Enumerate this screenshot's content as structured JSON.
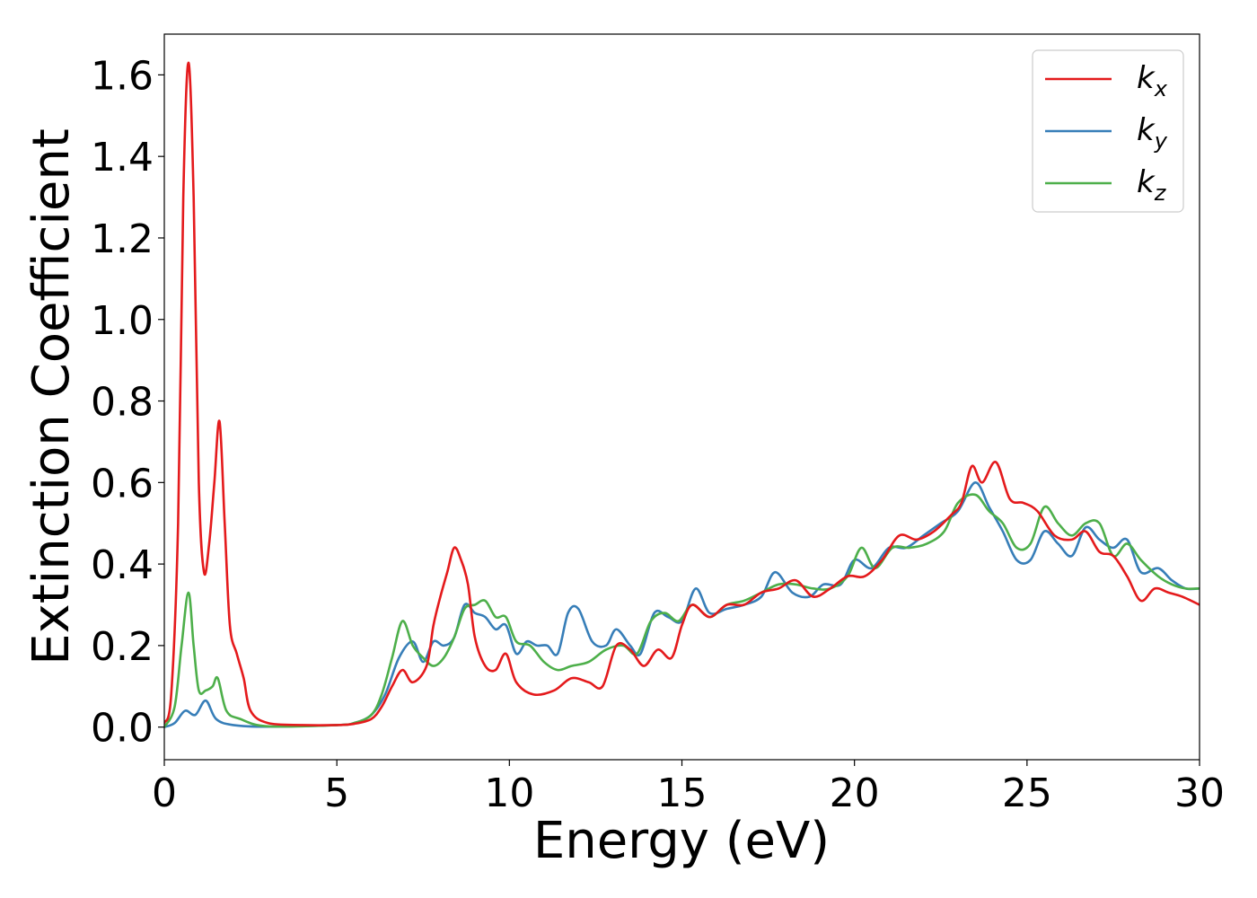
{
  "chart_data": {
    "type": "line",
    "xlabel": "Energy (eV)",
    "ylabel": "Extinction Coefficient",
    "xlim": [
      0,
      30
    ],
    "ylim": [
      -0.08,
      1.7
    ],
    "xticks": [
      0,
      5,
      10,
      15,
      20,
      25,
      30
    ],
    "xtick_labels": [
      "0",
      "5",
      "10",
      "15",
      "20",
      "25",
      "30"
    ],
    "yticks": [
      0.0,
      0.2,
      0.4,
      0.6,
      0.8,
      1.0,
      1.2,
      1.4,
      1.6
    ],
    "ytick_labels": [
      "0.0",
      "0.2",
      "0.4",
      "0.6",
      "0.8",
      "1.0",
      "1.2",
      "1.4",
      "1.6"
    ],
    "grid": false,
    "legend_position": "top-right",
    "series": [
      {
        "name": "k",
        "subscript": "x",
        "color": "#e41a1c",
        "points": [
          [
            0,
            0.01
          ],
          [
            0.2,
            0.08
          ],
          [
            0.4,
            0.5
          ],
          [
            0.55,
            1.3
          ],
          [
            0.7,
            1.63
          ],
          [
            0.85,
            1.3
          ],
          [
            1.0,
            0.6
          ],
          [
            1.15,
            0.38
          ],
          [
            1.3,
            0.45
          ],
          [
            1.45,
            0.6
          ],
          [
            1.6,
            0.75
          ],
          [
            1.75,
            0.5
          ],
          [
            1.9,
            0.25
          ],
          [
            2.1,
            0.18
          ],
          [
            2.3,
            0.12
          ],
          [
            2.5,
            0.04
          ],
          [
            3.0,
            0.01
          ],
          [
            4.0,
            0.005
          ],
          [
            5.0,
            0.005
          ],
          [
            5.5,
            0.008
          ],
          [
            6.0,
            0.02
          ],
          [
            6.3,
            0.05
          ],
          [
            6.6,
            0.1
          ],
          [
            6.9,
            0.14
          ],
          [
            7.2,
            0.11
          ],
          [
            7.6,
            0.15
          ],
          [
            7.8,
            0.25
          ],
          [
            8.0,
            0.32
          ],
          [
            8.2,
            0.38
          ],
          [
            8.4,
            0.44
          ],
          [
            8.6,
            0.41
          ],
          [
            8.8,
            0.35
          ],
          [
            9.0,
            0.22
          ],
          [
            9.3,
            0.15
          ],
          [
            9.6,
            0.14
          ],
          [
            9.9,
            0.18
          ],
          [
            10.2,
            0.11
          ],
          [
            10.7,
            0.08
          ],
          [
            11.3,
            0.09
          ],
          [
            11.8,
            0.12
          ],
          [
            12.3,
            0.11
          ],
          [
            12.7,
            0.1
          ],
          [
            13.1,
            0.2
          ],
          [
            13.5,
            0.19
          ],
          [
            13.9,
            0.15
          ],
          [
            14.3,
            0.19
          ],
          [
            14.7,
            0.17
          ],
          [
            15.0,
            0.25
          ],
          [
            15.3,
            0.3
          ],
          [
            15.8,
            0.27
          ],
          [
            16.3,
            0.3
          ],
          [
            16.8,
            0.3
          ],
          [
            17.3,
            0.33
          ],
          [
            17.8,
            0.34
          ],
          [
            18.3,
            0.36
          ],
          [
            18.8,
            0.32
          ],
          [
            19.3,
            0.34
          ],
          [
            19.8,
            0.37
          ],
          [
            20.3,
            0.37
          ],
          [
            20.8,
            0.41
          ],
          [
            21.3,
            0.47
          ],
          [
            21.8,
            0.46
          ],
          [
            22.3,
            0.48
          ],
          [
            22.8,
            0.52
          ],
          [
            23.1,
            0.55
          ],
          [
            23.4,
            0.64
          ],
          [
            23.7,
            0.6
          ],
          [
            24.1,
            0.65
          ],
          [
            24.5,
            0.56
          ],
          [
            24.9,
            0.55
          ],
          [
            25.3,
            0.53
          ],
          [
            25.8,
            0.47
          ],
          [
            26.3,
            0.46
          ],
          [
            26.7,
            0.48
          ],
          [
            27.1,
            0.43
          ],
          [
            27.5,
            0.42
          ],
          [
            27.9,
            0.37
          ],
          [
            28.3,
            0.31
          ],
          [
            28.7,
            0.34
          ],
          [
            29.1,
            0.33
          ],
          [
            29.5,
            0.32
          ],
          [
            30.0,
            0.3
          ]
        ]
      },
      {
        "name": "k",
        "subscript": "y",
        "color": "#377eb8",
        "points": [
          [
            0,
            0.0
          ],
          [
            0.3,
            0.01
          ],
          [
            0.6,
            0.04
          ],
          [
            0.9,
            0.03
          ],
          [
            1.2,
            0.065
          ],
          [
            1.5,
            0.02
          ],
          [
            2.0,
            0.005
          ],
          [
            3.0,
            0.001
          ],
          [
            5.0,
            0.005
          ],
          [
            5.5,
            0.01
          ],
          [
            6.0,
            0.03
          ],
          [
            6.4,
            0.08
          ],
          [
            6.8,
            0.17
          ],
          [
            7.2,
            0.21
          ],
          [
            7.5,
            0.16
          ],
          [
            7.8,
            0.21
          ],
          [
            8.1,
            0.2
          ],
          [
            8.4,
            0.22
          ],
          [
            8.7,
            0.3
          ],
          [
            9.0,
            0.28
          ],
          [
            9.3,
            0.27
          ],
          [
            9.6,
            0.24
          ],
          [
            9.9,
            0.25
          ],
          [
            10.2,
            0.18
          ],
          [
            10.5,
            0.21
          ],
          [
            10.8,
            0.2
          ],
          [
            11.1,
            0.2
          ],
          [
            11.4,
            0.18
          ],
          [
            11.7,
            0.28
          ],
          [
            12.0,
            0.29
          ],
          [
            12.4,
            0.21
          ],
          [
            12.8,
            0.2
          ],
          [
            13.1,
            0.24
          ],
          [
            13.5,
            0.2
          ],
          [
            13.8,
            0.18
          ],
          [
            14.2,
            0.28
          ],
          [
            14.6,
            0.27
          ],
          [
            15.0,
            0.26
          ],
          [
            15.4,
            0.34
          ],
          [
            15.8,
            0.28
          ],
          [
            16.3,
            0.29
          ],
          [
            16.8,
            0.3
          ],
          [
            17.3,
            0.32
          ],
          [
            17.7,
            0.38
          ],
          [
            18.2,
            0.33
          ],
          [
            18.7,
            0.32
          ],
          [
            19.1,
            0.35
          ],
          [
            19.6,
            0.35
          ],
          [
            20.0,
            0.41
          ],
          [
            20.5,
            0.39
          ],
          [
            21.0,
            0.44
          ],
          [
            21.5,
            0.44
          ],
          [
            22.0,
            0.47
          ],
          [
            22.5,
            0.5
          ],
          [
            23.0,
            0.53
          ],
          [
            23.5,
            0.6
          ],
          [
            23.9,
            0.54
          ],
          [
            24.3,
            0.48
          ],
          [
            24.7,
            0.41
          ],
          [
            25.1,
            0.41
          ],
          [
            25.5,
            0.48
          ],
          [
            25.9,
            0.45
          ],
          [
            26.3,
            0.42
          ],
          [
            26.7,
            0.49
          ],
          [
            27.1,
            0.46
          ],
          [
            27.5,
            0.44
          ],
          [
            27.9,
            0.46
          ],
          [
            28.3,
            0.38
          ],
          [
            28.8,
            0.39
          ],
          [
            29.2,
            0.36
          ],
          [
            29.6,
            0.34
          ],
          [
            30.0,
            0.34
          ]
        ]
      },
      {
        "name": "k",
        "subscript": "z",
        "color": "#4daf4a",
        "points": [
          [
            0,
            0.0
          ],
          [
            0.3,
            0.05
          ],
          [
            0.5,
            0.2
          ],
          [
            0.7,
            0.33
          ],
          [
            0.85,
            0.2
          ],
          [
            1.0,
            0.09
          ],
          [
            1.2,
            0.09
          ],
          [
            1.4,
            0.1
          ],
          [
            1.55,
            0.12
          ],
          [
            1.8,
            0.04
          ],
          [
            2.2,
            0.02
          ],
          [
            3.0,
            0.002
          ],
          [
            5.0,
            0.005
          ],
          [
            5.5,
            0.01
          ],
          [
            6.0,
            0.03
          ],
          [
            6.3,
            0.08
          ],
          [
            6.6,
            0.17
          ],
          [
            6.9,
            0.26
          ],
          [
            7.2,
            0.2
          ],
          [
            7.5,
            0.17
          ],
          [
            7.8,
            0.15
          ],
          [
            8.1,
            0.17
          ],
          [
            8.4,
            0.22
          ],
          [
            8.7,
            0.29
          ],
          [
            9.0,
            0.3
          ],
          [
            9.3,
            0.31
          ],
          [
            9.6,
            0.27
          ],
          [
            9.9,
            0.27
          ],
          [
            10.2,
            0.21
          ],
          [
            10.6,
            0.2
          ],
          [
            11.0,
            0.16
          ],
          [
            11.4,
            0.14
          ],
          [
            11.8,
            0.15
          ],
          [
            12.3,
            0.16
          ],
          [
            12.8,
            0.19
          ],
          [
            13.3,
            0.2
          ],
          [
            13.7,
            0.18
          ],
          [
            14.1,
            0.26
          ],
          [
            14.5,
            0.28
          ],
          [
            14.9,
            0.26
          ],
          [
            15.3,
            0.3
          ],
          [
            15.8,
            0.27
          ],
          [
            16.3,
            0.3
          ],
          [
            16.8,
            0.31
          ],
          [
            17.3,
            0.33
          ],
          [
            17.8,
            0.35
          ],
          [
            18.3,
            0.35
          ],
          [
            18.8,
            0.34
          ],
          [
            19.3,
            0.34
          ],
          [
            19.8,
            0.37
          ],
          [
            20.2,
            0.44
          ],
          [
            20.6,
            0.39
          ],
          [
            21.1,
            0.44
          ],
          [
            21.6,
            0.44
          ],
          [
            22.1,
            0.45
          ],
          [
            22.6,
            0.48
          ],
          [
            23.0,
            0.55
          ],
          [
            23.5,
            0.57
          ],
          [
            23.9,
            0.53
          ],
          [
            24.3,
            0.5
          ],
          [
            24.7,
            0.44
          ],
          [
            25.1,
            0.45
          ],
          [
            25.5,
            0.54
          ],
          [
            25.9,
            0.5
          ],
          [
            26.3,
            0.47
          ],
          [
            26.7,
            0.5
          ],
          [
            27.1,
            0.5
          ],
          [
            27.5,
            0.42
          ],
          [
            27.9,
            0.45
          ],
          [
            28.3,
            0.41
          ],
          [
            28.8,
            0.37
          ],
          [
            29.2,
            0.35
          ],
          [
            29.6,
            0.34
          ],
          [
            30.0,
            0.34
          ]
        ]
      }
    ]
  }
}
